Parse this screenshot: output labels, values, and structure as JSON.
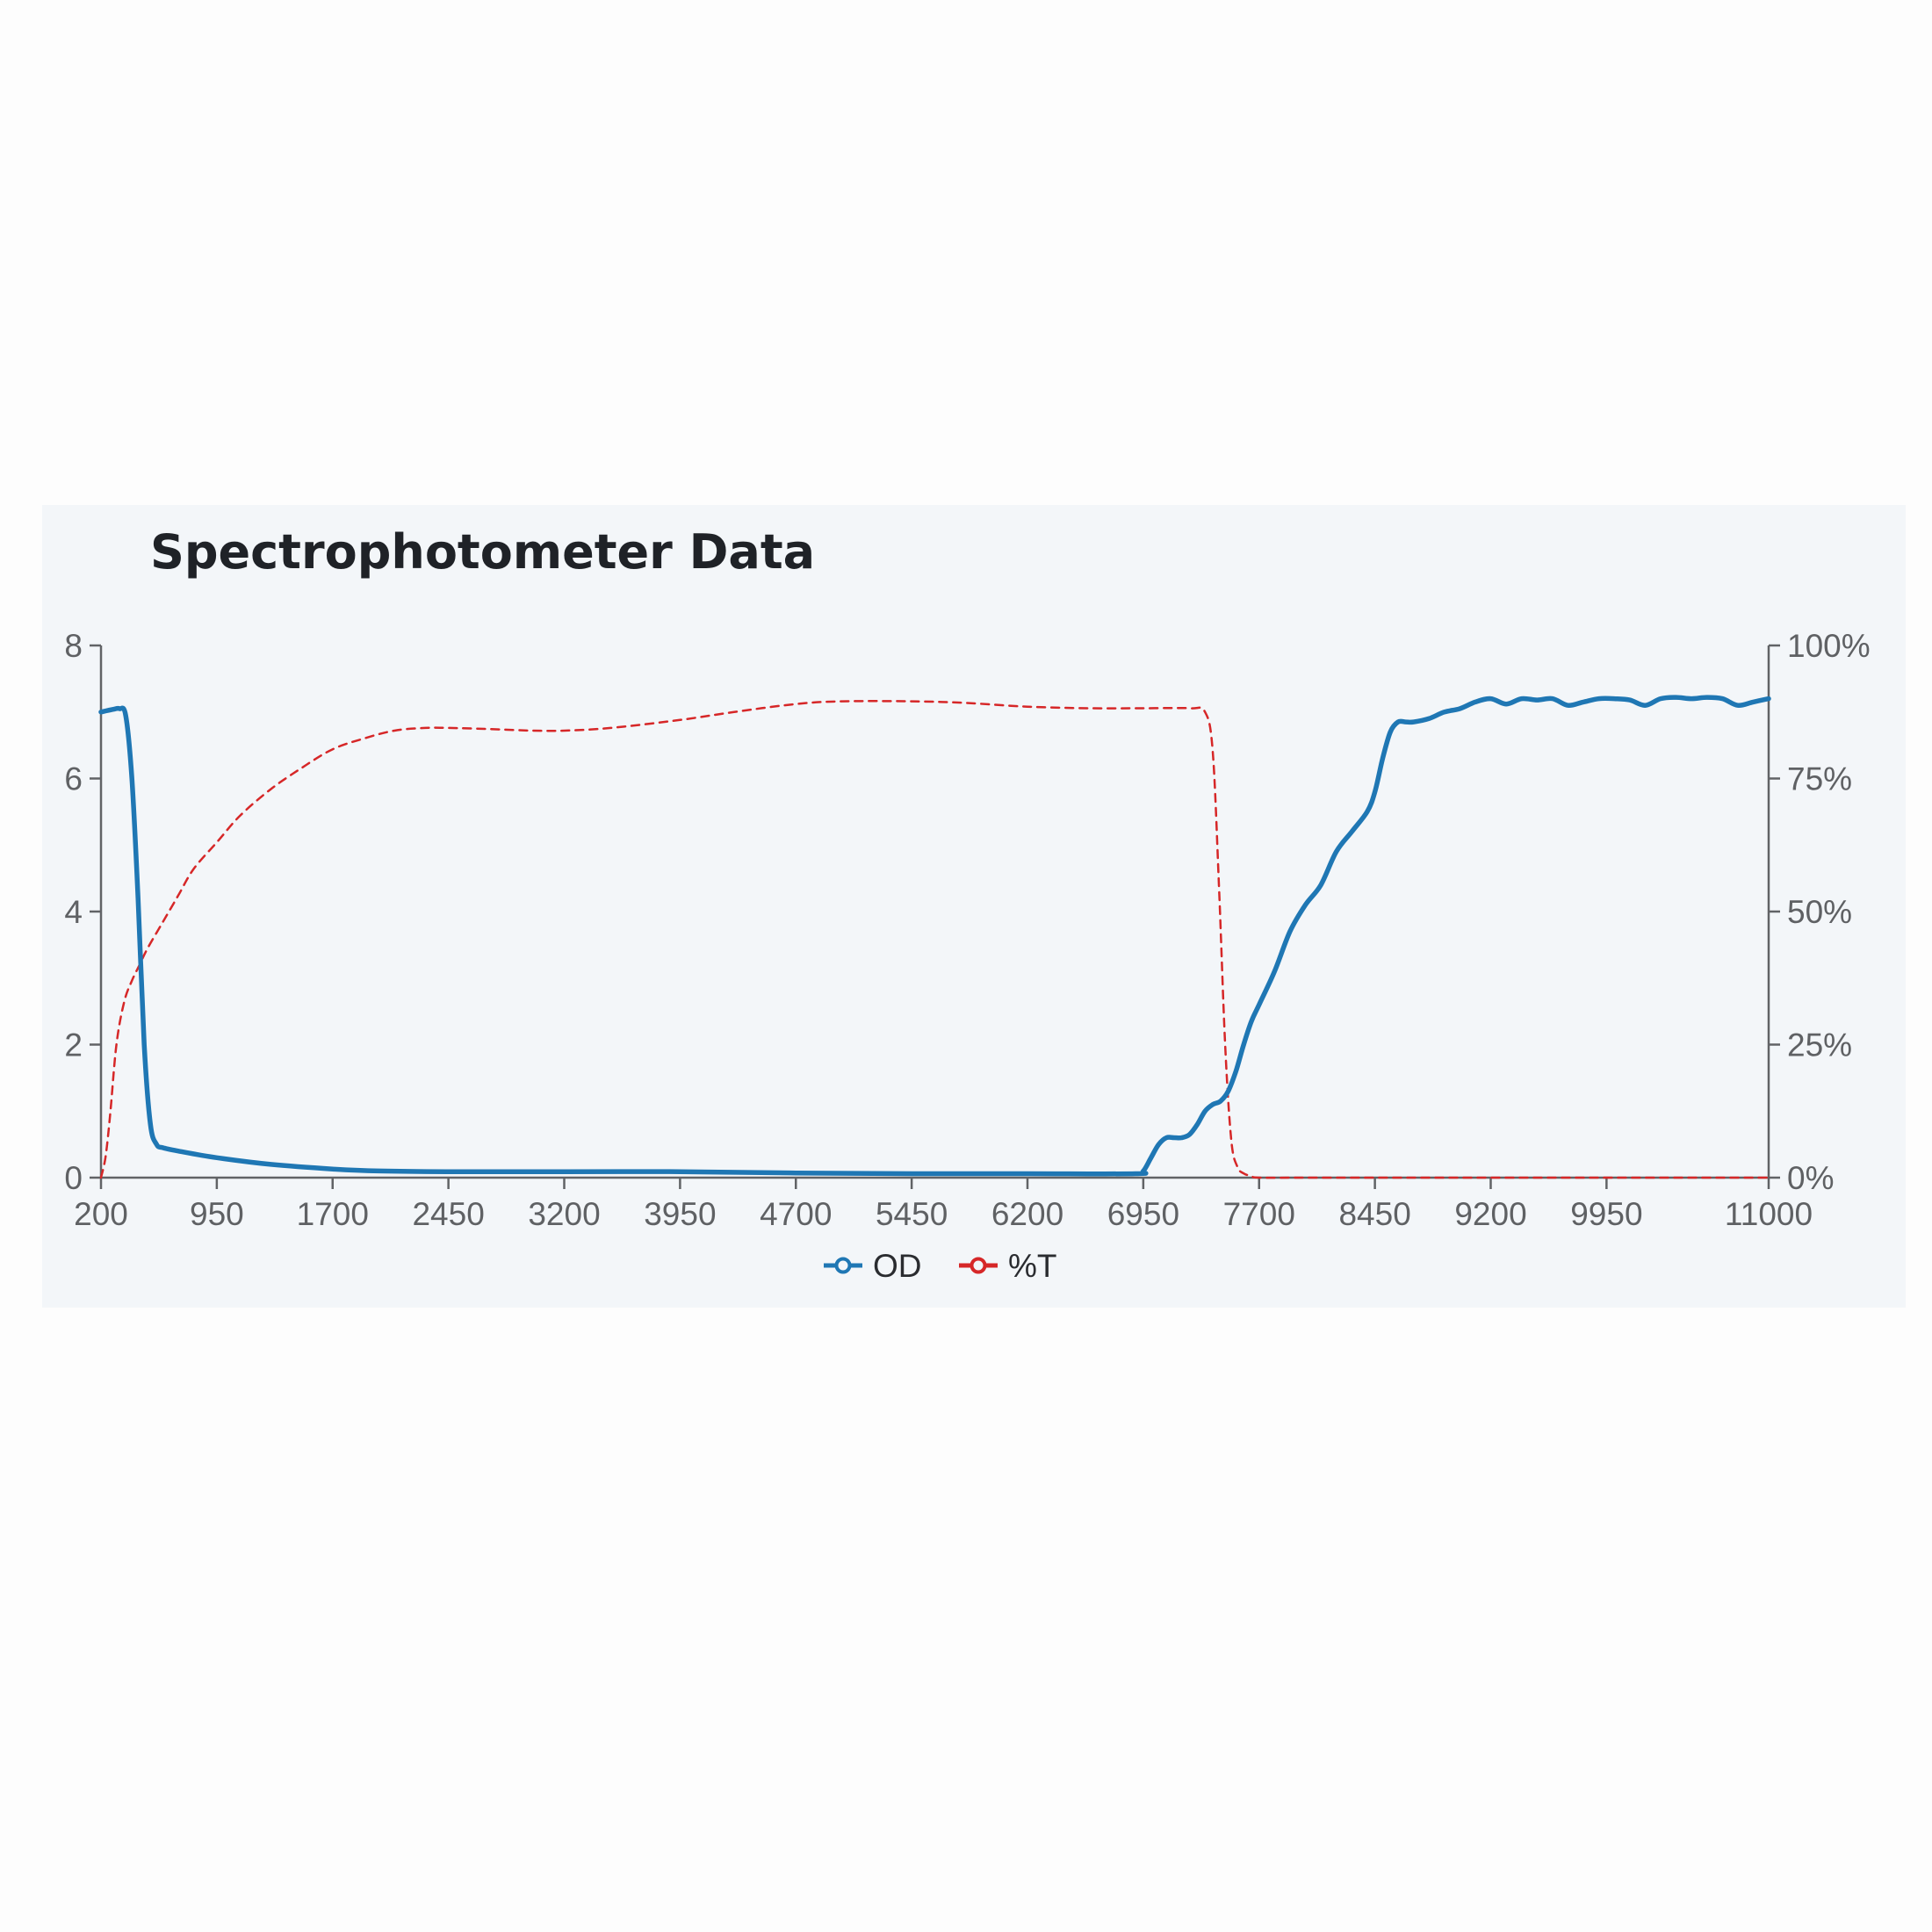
{
  "chart_data": {
    "type": "line",
    "title": "Spectrophotometer Data",
    "xlim": [
      200,
      11000
    ],
    "x_ticks": [
      200,
      950,
      1700,
      2450,
      3200,
      3950,
      4700,
      5450,
      6200,
      6950,
      7700,
      8450,
      9200,
      9950,
      11000
    ],
    "y_left_lim": [
      0,
      8
    ],
    "y_left_ticks": [
      0,
      2,
      4,
      6,
      8
    ],
    "y_left_tick_labels": [
      "0",
      "2",
      "4",
      "6",
      "8"
    ],
    "y_right_lim": [
      0,
      100
    ],
    "y_right_ticks": [
      0,
      25,
      50,
      75,
      100
    ],
    "y_right_tick_labels": [
      "0%",
      "25%",
      "50%",
      "75%",
      "100%"
    ],
    "grid": false,
    "legend_position": "bottom-center",
    "series": [
      {
        "name": "OD",
        "axis": "left",
        "color": "#1f77b4",
        "style": "solid",
        "x": [
          200,
          280,
          320,
          360,
          400,
          440,
          480,
          520,
          560,
          600,
          700,
          950,
          1300,
          1700,
          2000,
          2450,
          3200,
          3950,
          4700,
          5450,
          6200,
          6900,
          6950,
          7000,
          7050,
          7100,
          7150,
          7200,
          7250,
          7300,
          7350,
          7400,
          7450,
          7500,
          7550,
          7600,
          7650,
          7700,
          7800,
          7900,
          8000,
          8100,
          8200,
          8300,
          8400,
          8450,
          8500,
          8550,
          8600,
          8650,
          8700,
          8800,
          8900,
          9000,
          9100,
          9200,
          9300,
          9400,
          9500,
          9600,
          9700,
          9800,
          9900,
          10000,
          10100,
          10200,
          10300,
          10400,
          10500,
          10600,
          10700,
          10800,
          10900,
          11000
        ],
        "y": [
          7.0,
          7.04,
          7.05,
          6.95,
          6.0,
          4.2,
          2.0,
          0.8,
          0.5,
          0.45,
          0.4,
          0.3,
          0.2,
          0.13,
          0.1,
          0.09,
          0.09,
          0.09,
          0.07,
          0.06,
          0.06,
          0.06,
          0.1,
          0.3,
          0.5,
          0.6,
          0.6,
          0.6,
          0.65,
          0.8,
          1.0,
          1.1,
          1.15,
          1.3,
          1.6,
          2.0,
          2.35,
          2.6,
          3.1,
          3.7,
          4.1,
          4.4,
          4.9,
          5.2,
          5.5,
          5.8,
          6.3,
          6.7,
          6.85,
          6.85,
          6.85,
          6.9,
          7.0,
          7.05,
          7.15,
          7.2,
          7.12,
          7.2,
          7.18,
          7.2,
          7.1,
          7.15,
          7.2,
          7.2,
          7.18,
          7.1,
          7.2,
          7.22,
          7.2,
          7.22,
          7.2,
          7.1,
          7.15,
          7.2
        ]
      },
      {
        "name": "%T",
        "axis": "right",
        "color": "#d62728",
        "style": "dashed",
        "x": [
          200,
          230,
          260,
          300,
          350,
          400,
          450,
          500,
          600,
          700,
          800,
          950,
          1100,
          1300,
          1500,
          1700,
          1900,
          2100,
          2300,
          2450,
          2700,
          3000,
          3200,
          3500,
          3950,
          4300,
          4700,
          5000,
          5450,
          5800,
          6200,
          6600,
          6950,
          7250,
          7350,
          7400,
          7440,
          7480,
          7520,
          7560,
          7600,
          7650,
          7700,
          8000,
          9000,
          10000,
          11000
        ],
        "y": [
          0,
          4,
          12,
          25,
          33,
          37,
          40,
          43,
          48,
          53,
          58,
          63,
          68,
          73,
          77,
          80.5,
          82.5,
          84,
          84.5,
          84.5,
          84.3,
          84.0,
          84.0,
          84.5,
          86,
          87.5,
          89,
          89.5,
          89.5,
          89.2,
          88.5,
          88.2,
          88.2,
          88.2,
          87.5,
          80,
          55,
          25,
          7,
          2,
          0.8,
          0.3,
          0,
          0,
          0,
          0,
          0
        ]
      }
    ]
  }
}
